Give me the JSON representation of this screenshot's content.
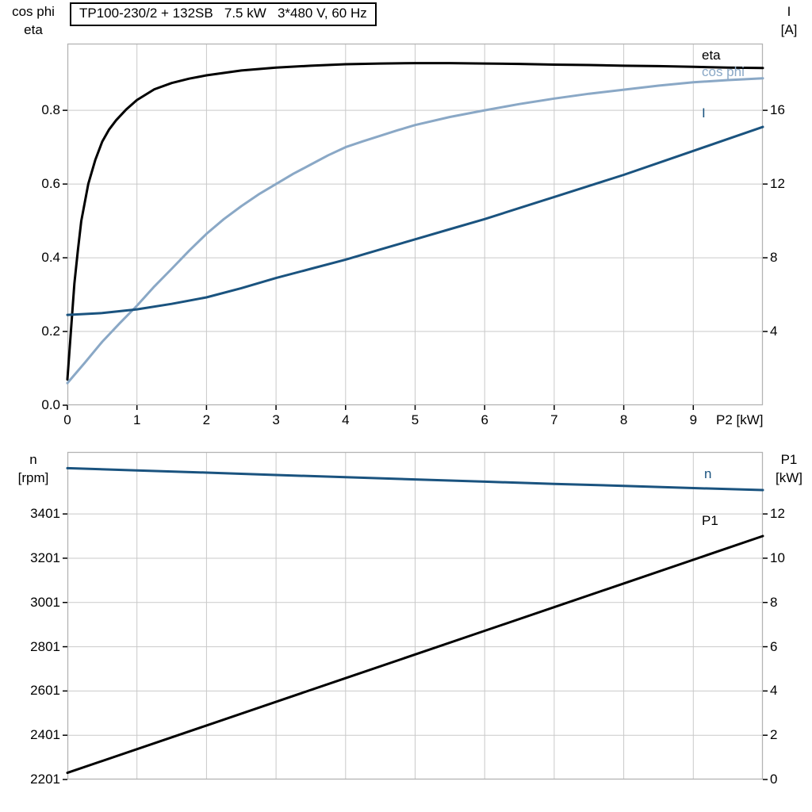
{
  "colors": {
    "background": "#ffffff",
    "grid": "#c9c9c9",
    "frame": "#b3b3b3",
    "tick_mark": "#000000",
    "black": "#000000",
    "light_blue": "#8aa8c6",
    "dark_blue": "#1a537f"
  },
  "chart_data": [
    {
      "type": "line",
      "title": "TP100-230/2 + 132SB   7.5 kW   3*480 V, 60 Hz",
      "x_axis": {
        "label": "P2 [kW]",
        "ticks": [
          "0",
          "1",
          "2",
          "3",
          "4",
          "5",
          "6",
          "7",
          "8",
          "9"
        ],
        "range": [
          0,
          10
        ],
        "gridlines": [
          1,
          2,
          3,
          4,
          5,
          6,
          7,
          8,
          9
        ]
      },
      "left_axis": {
        "label_lines": [
          "cos phi",
          "eta"
        ],
        "ticks": [
          "0.0",
          "0.2",
          "0.4",
          "0.6",
          "0.8"
        ],
        "range": [
          0,
          0.981
        ]
      },
      "right_axis": {
        "label_lines": [
          "I",
          "[A]"
        ],
        "ticks": [
          "4",
          "8",
          "12",
          "16"
        ],
        "range": [
          0,
          19.62
        ]
      },
      "series": [
        {
          "name": "eta",
          "axis": "left",
          "color": "#000000",
          "points": [
            [
              0,
              0.07
            ],
            [
              0.05,
              0.2
            ],
            [
              0.1,
              0.33
            ],
            [
              0.15,
              0.42
            ],
            [
              0.2,
              0.5
            ],
            [
              0.3,
              0.6
            ],
            [
              0.4,
              0.665
            ],
            [
              0.5,
              0.715
            ],
            [
              0.6,
              0.748
            ],
            [
              0.7,
              0.773
            ],
            [
              0.85,
              0.803
            ],
            [
              1,
              0.828
            ],
            [
              1.25,
              0.857
            ],
            [
              1.5,
              0.874
            ],
            [
              1.75,
              0.886
            ],
            [
              2,
              0.895
            ],
            [
              2.5,
              0.908
            ],
            [
              3,
              0.916
            ],
            [
              3.5,
              0.921
            ],
            [
              4,
              0.925
            ],
            [
              4.5,
              0.927
            ],
            [
              5,
              0.928
            ],
            [
              5.5,
              0.928
            ],
            [
              6,
              0.927
            ],
            [
              6.5,
              0.926
            ],
            [
              7,
              0.924
            ],
            [
              7.5,
              0.923
            ],
            [
              8,
              0.921
            ],
            [
              8.5,
              0.92
            ],
            [
              9,
              0.918
            ],
            [
              9.5,
              0.916
            ],
            [
              10,
              0.915
            ]
          ]
        },
        {
          "name": "cos phi",
          "axis": "left",
          "color": "#8aa8c6",
          "points": [
            [
              0,
              0.06
            ],
            [
              0.25,
              0.115
            ],
            [
              0.5,
              0.172
            ],
            [
              0.75,
              0.222
            ],
            [
              1,
              0.27
            ],
            [
              1.25,
              0.322
            ],
            [
              1.5,
              0.37
            ],
            [
              1.75,
              0.419
            ],
            [
              2,
              0.465
            ],
            [
              2.25,
              0.505
            ],
            [
              2.5,
              0.54
            ],
            [
              2.75,
              0.572
            ],
            [
              3,
              0.6
            ],
            [
              3.25,
              0.628
            ],
            [
              3.5,
              0.653
            ],
            [
              3.75,
              0.678
            ],
            [
              4,
              0.7
            ],
            [
              4.25,
              0.716
            ],
            [
              4.5,
              0.731
            ],
            [
              4.75,
              0.746
            ],
            [
              5,
              0.76
            ],
            [
              5.5,
              0.782
            ],
            [
              6,
              0.8
            ],
            [
              6.5,
              0.817
            ],
            [
              7,
              0.832
            ],
            [
              7.5,
              0.845
            ],
            [
              8,
              0.856
            ],
            [
              8.5,
              0.867
            ],
            [
              9,
              0.876
            ],
            [
              9.5,
              0.882
            ],
            [
              10,
              0.887
            ]
          ]
        },
        {
          "name": "I",
          "axis": "right",
          "color": "#1a537f",
          "points": [
            [
              0,
              4.9
            ],
            [
              0.5,
              5.0
            ],
            [
              1,
              5.2
            ],
            [
              1.5,
              5.5
            ],
            [
              2,
              5.85
            ],
            [
              2.5,
              6.35
            ],
            [
              3,
              6.9
            ],
            [
              3.5,
              7.4
            ],
            [
              4,
              7.9
            ],
            [
              4.5,
              8.45
            ],
            [
              5,
              9.0
            ],
            [
              5.5,
              9.55
            ],
            [
              6,
              10.1
            ],
            [
              6.5,
              10.7
            ],
            [
              7,
              11.3
            ],
            [
              7.5,
              11.9
            ],
            [
              8,
              12.5
            ],
            [
              8.5,
              13.15
            ],
            [
              9,
              13.8
            ],
            [
              9.5,
              14.45
            ],
            [
              10,
              15.1
            ]
          ]
        }
      ]
    },
    {
      "type": "line",
      "title": "",
      "x_axis": {
        "label": "",
        "ticks": [],
        "range": [
          0,
          10
        ],
        "gridlines": [
          1,
          2,
          3,
          4,
          5,
          6,
          7,
          8,
          9
        ]
      },
      "left_axis": {
        "label_lines": [
          "n",
          "[rpm]"
        ],
        "ticks": [
          "2201",
          "2401",
          "2601",
          "2801",
          "3001",
          "3201",
          "3401"
        ],
        "range": [
          2201,
          3681
        ]
      },
      "right_axis": {
        "label_lines": [
          "P1",
          "[kW]"
        ],
        "ticks": [
          "0",
          "2",
          "4",
          "6",
          "8",
          "10",
          "12"
        ],
        "range": [
          0,
          14.8
        ]
      },
      "series": [
        {
          "name": "n",
          "axis": "left",
          "color": "#1a537f",
          "points": [
            [
              0,
              3608
            ],
            [
              1,
              3598
            ],
            [
              2,
              3588
            ],
            [
              3,
              3577
            ],
            [
              4,
              3567
            ],
            [
              5,
              3557
            ],
            [
              6,
              3547
            ],
            [
              7,
              3537
            ],
            [
              8,
              3528
            ],
            [
              9,
              3518
            ],
            [
              10,
              3509
            ]
          ]
        },
        {
          "name": "P1",
          "axis": "right",
          "color": "#000000",
          "points": [
            [
              0,
              0.3
            ],
            [
              2,
              2.44
            ],
            [
              4,
              4.58
            ],
            [
              6,
              6.72
            ],
            [
              8,
              8.86
            ],
            [
              10,
              11.0
            ]
          ]
        }
      ]
    }
  ]
}
